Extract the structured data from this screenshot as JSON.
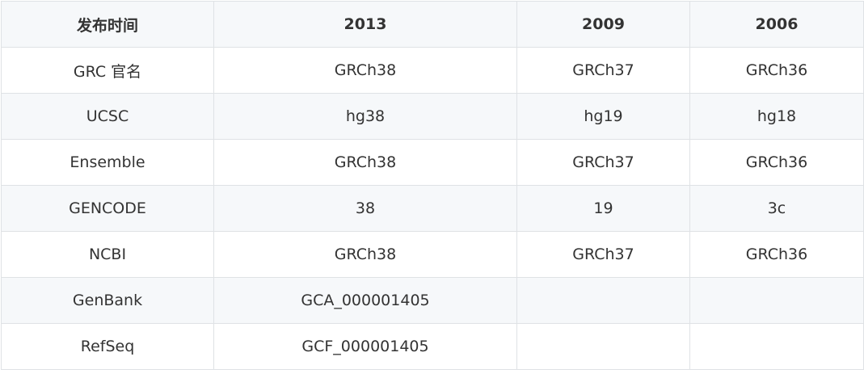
{
  "header": [
    "发布时间",
    "2013",
    "2009",
    "2006"
  ],
  "rows": [
    [
      "GRC 官名",
      "GRCh38",
      "GRCh37",
      "GRCh36"
    ],
    [
      "UCSC",
      "hg38",
      "hg19",
      "hg18"
    ],
    [
      "Ensemble",
      "GRCh38",
      "GRCh37",
      "GRCh36"
    ],
    [
      "GENCODE",
      "38",
      "19",
      "3c"
    ],
    [
      "NCBI",
      "GRCh38",
      "GRCh37",
      "GRCh36"
    ],
    [
      "GenBank",
      "GCA_000001405",
      "",
      ""
    ],
    [
      "RefSeq",
      "GCF_000001405",
      "",
      ""
    ]
  ]
}
